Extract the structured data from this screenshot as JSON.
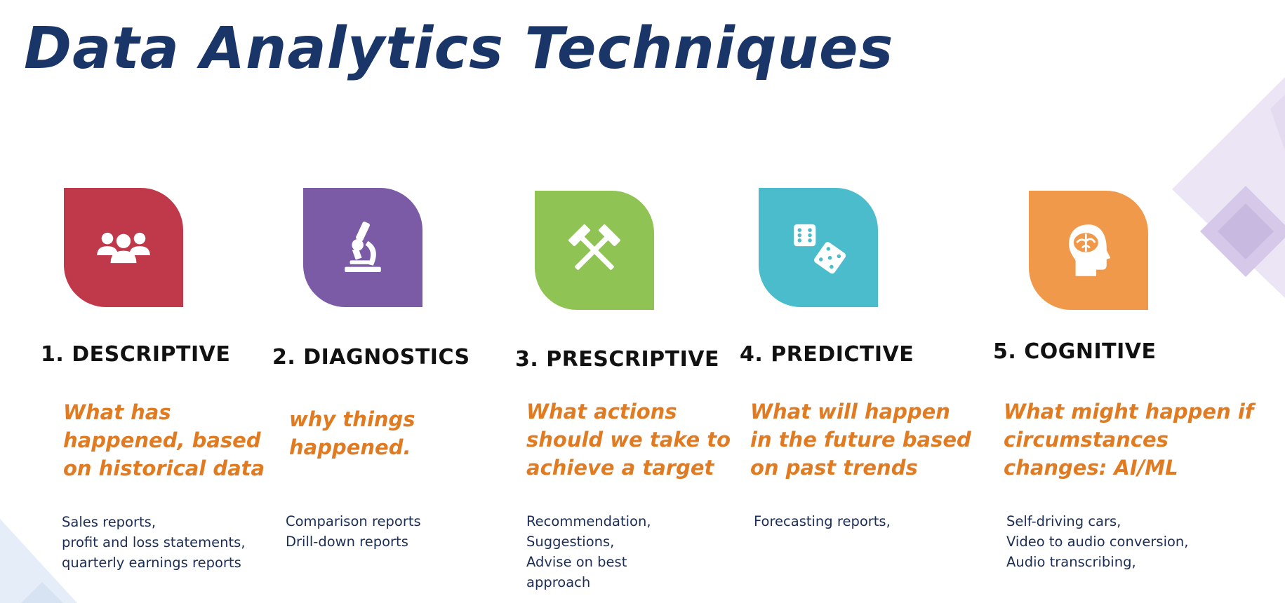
{
  "title": "Data Analytics Techniques",
  "colors": {
    "title": "#1a3668",
    "question": "#e07b22",
    "examples": "#1c2e55",
    "decoration": "#ddd3ee"
  },
  "techniques": [
    {
      "heading": "1. DESCRIPTIVE",
      "question": "What has\nhappened, based\non historical data",
      "examples": "Sales reports,\nprofit and loss statements,\nquarterly earnings reports",
      "icon": "people-group-icon",
      "color": "#c0394a"
    },
    {
      "heading": "2. DIAGNOSTICS",
      "question": "why things\nhappened.",
      "examples": "Comparison reports\nDrill-down reports",
      "icon": "microscope-icon",
      "color": "#7b5aa6"
    },
    {
      "heading": "3. PRESCRIPTIVE",
      "question": "What actions\nshould we take to\nachieve a target",
      "examples": "Recommendation,\nSuggestions,\nAdvise on best\napproach",
      "icon": "crossed-hammers-icon",
      "color": "#8fc353"
    },
    {
      "heading": "4. PREDICTIVE",
      "question": "What will happen\nin the future based\non past trends",
      "examples": "Forecasting reports,",
      "icon": "dice-icon",
      "color": "#4bbccb"
    },
    {
      "heading": "5. COGNITIVE",
      "question": "What might happen if\ncircumstances\nchanges: AI/ML",
      "examples": "Self-driving cars,\nVideo to audio conversion,\nAudio transcribing,",
      "icon": "brain-head-icon",
      "color": "#f1994a"
    }
  ]
}
